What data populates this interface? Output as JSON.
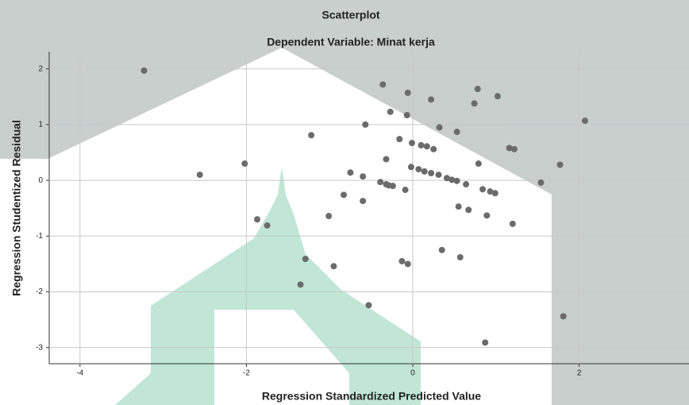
{
  "chart_data": {
    "type": "scatter",
    "title": "Scatterplot",
    "subtitle": "Dependent Variable: Minat kerja",
    "x_label": "Regression Standardized Predicted Value",
    "y_label": "Regression Studentized Residual",
    "color": "#6b6b6b",
    "grid": true,
    "xlim": [
      -4.37,
      3.32
    ],
    "ylim": [
      -3.29,
      2.31
    ],
    "xticks": [
      -4,
      -2,
      0,
      2
    ],
    "yticks": [
      2,
      1,
      0,
      -1,
      -2,
      -3
    ],
    "x": [
      -3.23,
      -2.56,
      -2.02,
      -1.22,
      -1.87,
      -1.75,
      -1.29,
      -1.35,
      -1.01,
      -0.95,
      -0.83,
      -0.75,
      -0.6,
      -0.6,
      -0.57,
      -0.53,
      -0.36,
      -0.27,
      -0.32,
      -0.39,
      -0.32,
      -0.29,
      -0.24,
      -0.16,
      -0.13,
      -0.09,
      -0.06,
      -0.07,
      -0.06,
      -0.01,
      -0.02,
      0.07,
      0.1,
      0.14,
      0.17,
      0.22,
      0.22,
      0.25,
      0.31,
      0.32,
      0.35,
      0.41,
      0.47,
      0.53,
      0.53,
      0.55,
      0.57,
      0.64,
      0.67,
      0.74,
      0.78,
      0.79,
      0.84,
      0.87,
      0.89,
      0.93,
      0.99,
      1.02,
      1.16,
      1.22,
      1.2,
      1.54,
      1.77,
      1.81,
      2.07
    ],
    "values": [
      1.97,
      0.1,
      0.3,
      0.81,
      -0.7,
      -0.81,
      -1.41,
      -1.87,
      -0.64,
      -1.54,
      -0.26,
      0.14,
      0.07,
      -0.37,
      1.0,
      -2.24,
      1.72,
      1.23,
      0.38,
      -0.03,
      -0.07,
      -0.09,
      -0.1,
      0.74,
      -1.45,
      -0.17,
      1.57,
      1.17,
      -1.5,
      0.67,
      0.24,
      0.2,
      0.63,
      0.16,
      0.61,
      1.45,
      0.13,
      0.56,
      0.1,
      0.95,
      -1.25,
      0.04,
      0.01,
      0.87,
      -0.01,
      -0.47,
      -1.38,
      -0.07,
      -0.53,
      1.38,
      1.64,
      0.3,
      -0.16,
      -2.91,
      -0.63,
      -0.2,
      -0.23,
      1.51,
      0.58,
      0.56,
      -0.78,
      -0.04,
      0.28,
      -2.44,
      1.07
    ]
  }
}
